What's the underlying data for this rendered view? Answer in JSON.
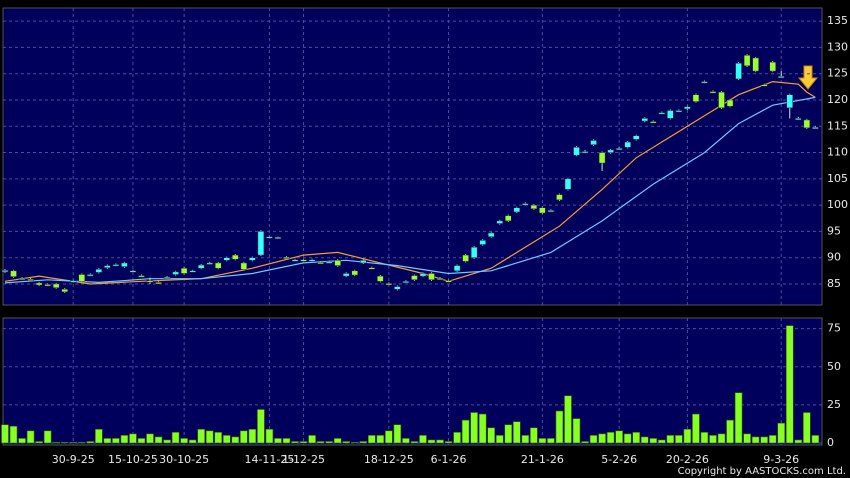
{
  "chart_data": {
    "type": "candlestick",
    "up_color": "#33ffff",
    "down_color": "#99ff33",
    "categories": [
      null,
      null,
      null,
      null,
      null,
      null,
      null,
      null,
      "30-9-25",
      null,
      null,
      null,
      null,
      null,
      null,
      "15-10-25",
      null,
      null,
      null,
      null,
      null,
      "30-10-25",
      null,
      null,
      null,
      null,
      null,
      null,
      null,
      null,
      null,
      "14-11-25",
      null,
      null,
      null,
      "1-12-25",
      null,
      null,
      null,
      null,
      null,
      null,
      null,
      null,
      null,
      "18-12-25",
      null,
      null,
      null,
      null,
      null,
      null,
      "6-1-26",
      null,
      null,
      null,
      null,
      null,
      null,
      null,
      null,
      null,
      null,
      "21-1-26",
      null,
      null,
      null,
      null,
      null,
      null,
      null,
      null,
      "5-2-26",
      null,
      null,
      null,
      null,
      null,
      null,
      null,
      "20-2-26",
      null,
      null,
      null,
      null,
      null,
      null,
      null,
      null,
      null,
      null,
      "9-3-26",
      null,
      null,
      null,
      null
    ],
    "open": [
      87.3,
      87.5,
      86.1,
      85.9,
      85.2,
      84.9,
      85.0,
      84.0,
      85.4,
      86.8,
      86.7,
      87.2,
      88.1,
      88.6,
      88.3,
      87.4,
      86.6,
      85.6,
      85.3,
      86.2,
      86.8,
      88.0,
      87.4,
      88.0,
      88.9,
      89.0,
      89.5,
      90.5,
      89.0,
      89.5,
      90.5,
      94.0,
      93.8,
      90.1,
      89.5,
      89.6,
      89.5,
      89.1,
      89.1,
      89.5,
      86.5,
      87.5,
      89.0,
      88.1,
      86.5,
      85.1,
      84.0,
      85.4,
      86.6,
      86.5,
      87.0,
      86.1,
      85.6,
      87.5,
      90.5,
      90.0,
      92.5,
      94.0,
      96.5,
      98.0,
      98.7,
      100.1,
      100.0,
      99.5,
      98.9,
      102.0,
      103.0,
      109.5,
      110.1,
      111.5,
      110.0,
      110.0,
      110.7,
      111.0,
      112.5,
      116.0,
      115.9,
      117.5,
      116.5,
      117.9,
      118.3,
      121.0,
      123.4,
      121.6,
      121.5,
      120.0,
      124.0,
      128.5,
      128.0,
      122.9,
      127.2,
      124.4,
      118.5,
      116.4,
      116.2,
      114.8
    ],
    "high": [
      87.8,
      87.7,
      86.3,
      86.1,
      85.4,
      85.1,
      85.2,
      84.2,
      85.8,
      87.0,
      87.0,
      88.0,
      88.7,
      88.9,
      89.2,
      87.7,
      86.8,
      86.2,
      85.5,
      86.5,
      87.5,
      88.2,
      87.7,
      88.8,
      89.2,
      89.2,
      90.2,
      90.7,
      89.2,
      90.2,
      95.2,
      94.2,
      94.0,
      90.3,
      89.8,
      89.8,
      89.8,
      89.3,
      89.4,
      89.7,
      87.2,
      87.7,
      89.7,
      88.3,
      86.7,
      85.3,
      84.7,
      85.7,
      86.8,
      87.2,
      87.2,
      86.3,
      85.8,
      88.7,
      90.7,
      92.2,
      93.5,
      94.9,
      97.2,
      98.2,
      99.7,
      100.5,
      100.2,
      99.7,
      99.2,
      102.2,
      105.2,
      111.2,
      110.5,
      112.5,
      110.2,
      110.7,
      111.0,
      112.2,
      113.4,
      116.7,
      116.1,
      117.8,
      118.2,
      118.2,
      118.9,
      121.2,
      123.7,
      121.8,
      121.7,
      120.2,
      127.2,
      128.7,
      128.2,
      123.1,
      127.4,
      125.5,
      121.2,
      116.8,
      116.4,
      115.0
    ],
    "low": [
      87.1,
      86.2,
      85.8,
      85.6,
      84.6,
      84.6,
      84.1,
      83.3,
      85.2,
      85.3,
      86.5,
      87.0,
      87.9,
      88.4,
      88.1,
      87.2,
      86.3,
      85.0,
      85.0,
      86.0,
      86.6,
      86.8,
      87.2,
      87.8,
      88.7,
      87.8,
      89.3,
      89.5,
      87.6,
      89.3,
      90.3,
      93.8,
      93.6,
      89.8,
      89.3,
      89.3,
      89.3,
      88.8,
      88.9,
      88.3,
      86.3,
      86.5,
      88.8,
      87.8,
      85.3,
      84.8,
      83.8,
      85.2,
      85.6,
      86.3,
      85.6,
      85.8,
      85.3,
      87.3,
      89.1,
      89.8,
      92.3,
      93.8,
      96.3,
      96.8,
      98.5,
      99.9,
      99.1,
      98.3,
      98.7,
      100.8,
      102.8,
      109.3,
      109.9,
      111.3,
      106.5,
      109.8,
      110.5,
      110.8,
      112.3,
      115.8,
      115.6,
      117.3,
      116.3,
      117.7,
      118.1,
      119.5,
      123.2,
      121.3,
      118.3,
      118.6,
      123.8,
      126.3,
      125.3,
      122.6,
      125.3,
      124.2,
      116.5,
      116.2,
      114.5,
      114.6
    ],
    "close": [
      87.6,
      86.4,
      86.0,
      85.8,
      84.8,
      84.8,
      84.3,
      83.5,
      85.6,
      85.5,
      86.8,
      87.8,
      88.5,
      88.7,
      89.0,
      87.5,
      86.5,
      85.5,
      85.2,
      86.3,
      87.3,
      87.0,
      87.5,
      88.6,
      89.0,
      88.0,
      90.0,
      89.7,
      87.8,
      90.0,
      95.0,
      94.0,
      93.9,
      90.0,
      89.6,
      89.5,
      89.6,
      89.0,
      89.2,
      88.5,
      87.0,
      86.7,
      89.5,
      88.0,
      85.5,
      85.0,
      84.5,
      85.5,
      85.8,
      87.0,
      85.8,
      86.0,
      85.5,
      88.5,
      89.3,
      92.0,
      93.3,
      94.7,
      97.0,
      97.0,
      99.5,
      100.3,
      99.3,
      98.5,
      99.0,
      101.0,
      105.0,
      111.0,
      110.2,
      112.3,
      108.0,
      110.5,
      110.8,
      112.0,
      113.2,
      116.5,
      115.8,
      117.6,
      118.0,
      118.0,
      118.7,
      119.7,
      123.5,
      121.5,
      118.5,
      118.8,
      127.0,
      126.5,
      125.5,
      122.8,
      125.5,
      124.5,
      121.0,
      116.5,
      114.7,
      114.8
    ],
    "series": [
      {
        "color": "#ff9933",
        "x": [
          0,
          4,
          10,
          16,
          23,
          29,
          35,
          39,
          44,
          49,
          52,
          57,
          62,
          65,
          70,
          74,
          79,
          83,
          86,
          90,
          93,
          94,
          95
        ],
        "values": [
          85.5,
          86.5,
          85.0,
          85.5,
          86.0,
          88.0,
          90.5,
          91.0,
          89.0,
          87.0,
          85.5,
          88.0,
          93.0,
          96.0,
          103.0,
          109.0,
          114.0,
          118.0,
          121.0,
          123.5,
          123.0,
          121.5,
          120.5
        ]
      },
      {
        "color": "#66ccff",
        "x": [
          0,
          5,
          11,
          17,
          23,
          29,
          35,
          40,
          46,
          52,
          57,
          64,
          70,
          76,
          82,
          86,
          90,
          95
        ],
        "values": [
          85.2,
          85.8,
          85.3,
          86.0,
          86.0,
          87.0,
          89.0,
          89.5,
          88.5,
          87.0,
          87.5,
          91.0,
          97.0,
          104.0,
          110.0,
          115.5,
          119.0,
          120.5
        ]
      }
    ],
    "ylim": [
      81,
      137.5
    ],
    "yticks": [
      85,
      90,
      95,
      100,
      105,
      110,
      115,
      120,
      125,
      130,
      135
    ],
    "grid": true,
    "volume": {
      "color": "#88ff22",
      "values": [
        12,
        11,
        3,
        8,
        1,
        8,
        0.5,
        0.5,
        0.5,
        0.5,
        1,
        9,
        3,
        3,
        5,
        6,
        3,
        6,
        4,
        2,
        7,
        3,
        2,
        9,
        8,
        7,
        5,
        4,
        8,
        9,
        22,
        9,
        3,
        3,
        1,
        1,
        5,
        1,
        1,
        3,
        1,
        0.5,
        1,
        5,
        5,
        8,
        12,
        3,
        1,
        5,
        2,
        2,
        1,
        7,
        15,
        20,
        19,
        10,
        5,
        12,
        14,
        5,
        10,
        3,
        3,
        21,
        31,
        16,
        1,
        5,
        6,
        7,
        8,
        6,
        7,
        4,
        3,
        2,
        5,
        5,
        9,
        19,
        7,
        5,
        6,
        15,
        33,
        6,
        4,
        4,
        5,
        13,
        77,
        2,
        20,
        5
      ],
      "ylim": [
        0,
        82
      ],
      "yticks": [
        0,
        25,
        50,
        75
      ]
    },
    "copyright": "Copyright by AASTOCKS.com Ltd."
  }
}
